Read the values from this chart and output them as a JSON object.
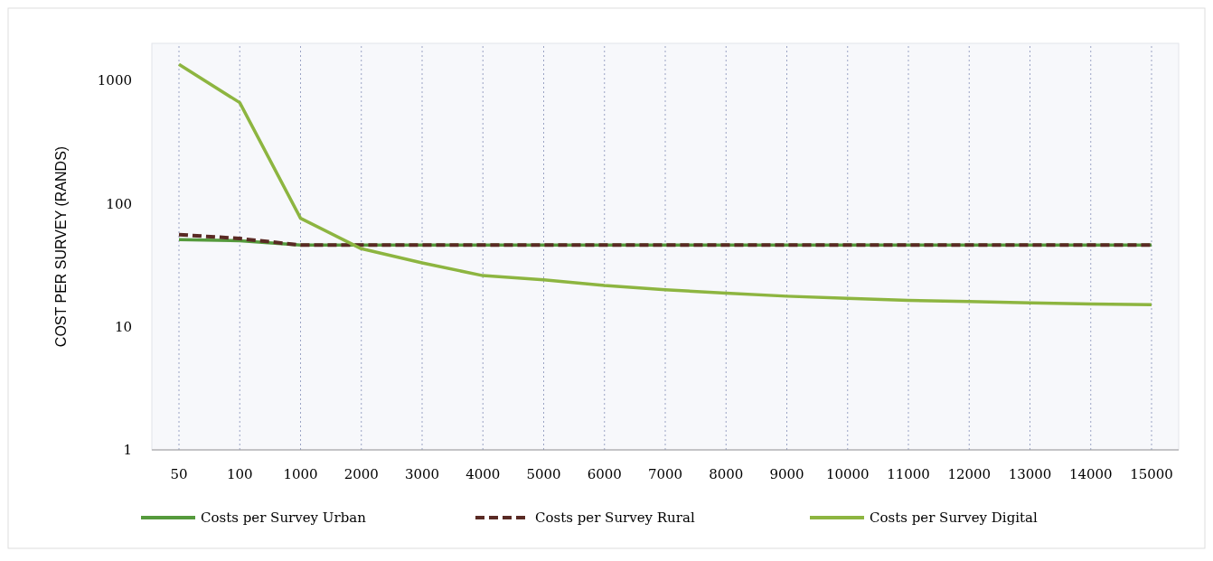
{
  "chart_data": {
    "type": "line",
    "ylabel": "COST PER SURVEY (RANDS)",
    "categories": [
      "50",
      "100",
      "1000",
      "2000",
      "3000",
      "4000",
      "5000",
      "6000",
      "7000",
      "8000",
      "9000",
      "10000",
      "11000",
      "12000",
      "13000",
      "14000",
      "15000"
    ],
    "series": [
      {
        "name": "Costs per Survey Urban",
        "color": "#559a3c",
        "line_style": "solid",
        "values": [
          51,
          50,
          46,
          46,
          46,
          46,
          46,
          46,
          46,
          46,
          46,
          46,
          46,
          46,
          46,
          46,
          46
        ]
      },
      {
        "name": "Costs per Survey Rural",
        "color": "#5a2a24",
        "line_style": "dashed",
        "values": [
          56,
          52,
          46,
          46,
          46,
          46,
          46,
          46,
          46,
          46,
          46,
          46,
          46,
          46,
          46,
          46,
          46
        ]
      },
      {
        "name": "Costs per Survey Digital",
        "color": "#8db540",
        "line_style": "solid",
        "values": [
          1350,
          660,
          76,
          43,
          33,
          26,
          24,
          21.6,
          20,
          18.7,
          17.7,
          17,
          16.4,
          16,
          15.6,
          15.3,
          15.1
        ]
      }
    ],
    "log": "y",
    "ylim": [
      1,
      2000
    ],
    "yticks": [
      1,
      10,
      100,
      1000
    ],
    "grid": "x",
    "legend": "bottom",
    "marker": "none"
  }
}
